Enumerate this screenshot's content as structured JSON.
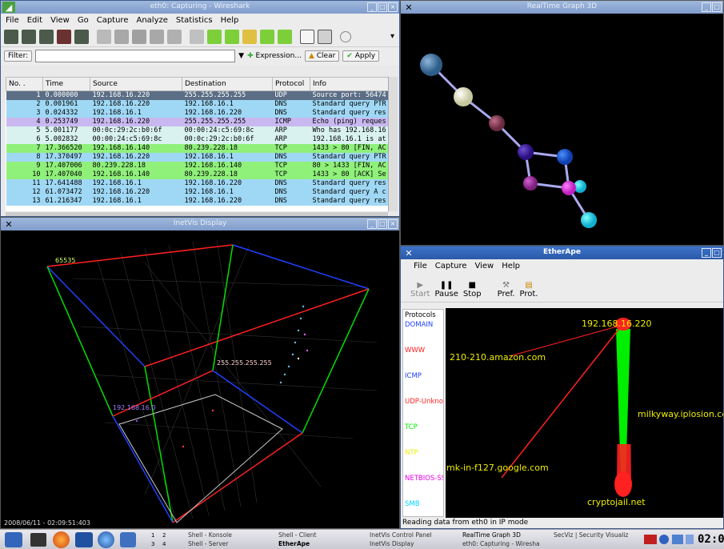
{
  "wireshark": {
    "title": "eth0: Capturing - Wireshark",
    "menu": [
      "File",
      "Edit",
      "View",
      "Go",
      "Capture",
      "Analyze",
      "Statistics",
      "Help"
    ],
    "filter_label": "Filter:",
    "filter_value": "",
    "expression_label": "Expression...",
    "clear_label": "Clear",
    "apply_label": "Apply",
    "columns": [
      "No. .",
      "Time",
      "Source",
      "Destination",
      "Protocol",
      "Info"
    ],
    "rows": [
      {
        "no": "1",
        "time": "0.000000",
        "src": "192.168.16.220",
        "dst": "255.255.255.255",
        "proto": "UDP",
        "info": "Source port: 56474",
        "bg": "#5b6e86",
        "fg": "#ffffff"
      },
      {
        "no": "2",
        "time": "0.001961",
        "src": "192.168.16.220",
        "dst": "192.168.16.1",
        "proto": "DNS",
        "info": "Standard query PTR",
        "bg": "#9fd8f5",
        "fg": "#000000"
      },
      {
        "no": "3",
        "time": "0.024332",
        "src": "192.168.16.1",
        "dst": "192.168.16.220",
        "proto": "DNS",
        "info": "Standard query res",
        "bg": "#9fd8f5",
        "fg": "#000000"
      },
      {
        "no": "4",
        "time": "0.253749",
        "src": "192.168.16.220",
        "dst": "255.255.255.255",
        "proto": "ICMP",
        "info": "Echo (ping) reques",
        "bg": "#c9b8f0",
        "fg": "#000000"
      },
      {
        "no": "5",
        "time": "5.001177",
        "src": "00:0c:29:2c:b0:6f",
        "dst": "00:00:24:c5:69:8c",
        "proto": "ARP",
        "info": "Who has 192.168.16",
        "bg": "#d9f2f0",
        "fg": "#000000"
      },
      {
        "no": "6",
        "time": "5.002832",
        "src": "00:00:24:c5:69:8c",
        "dst": "00:0c:29:2c:b0:6f",
        "proto": "ARP",
        "info": "192.168.16.1 is at",
        "bg": "#d9f2f0",
        "fg": "#000000"
      },
      {
        "no": "7",
        "time": "17.366520",
        "src": "192.168.16.140",
        "dst": "80.239.228.18",
        "proto": "TCP",
        "info": "1433 > 80 [FIN, AC",
        "bg": "#8ff07a",
        "fg": "#000000"
      },
      {
        "no": "8",
        "time": "17.370497",
        "src": "192.168.16.220",
        "dst": "192.168.16.1",
        "proto": "DNS",
        "info": "Standard query PTR",
        "bg": "#9fd8f5",
        "fg": "#000000"
      },
      {
        "no": "9",
        "time": "17.407006",
        "src": "80.239.228.18",
        "dst": "192.168.16.140",
        "proto": "TCP",
        "info": "80 > 1433 [FIN, AC",
        "bg": "#8ff07a",
        "fg": "#000000"
      },
      {
        "no": "10",
        "time": "17.407040",
        "src": "192.168.16.140",
        "dst": "80.239.228.18",
        "proto": "TCP",
        "info": "1433 > 80 [ACK] Se",
        "bg": "#8ff07a",
        "fg": "#000000"
      },
      {
        "no": "11",
        "time": "17.641488",
        "src": "192.168.16.1",
        "dst": "192.168.16.220",
        "proto": "DNS",
        "info": "Standard query res",
        "bg": "#9fd8f5",
        "fg": "#000000"
      },
      {
        "no": "12",
        "time": "61.073472",
        "src": "192.168.16.220",
        "dst": "192.168.16.1",
        "proto": "DNS",
        "info": "Standard query A c",
        "bg": "#9fd8f5",
        "fg": "#000000"
      },
      {
        "no": "13",
        "time": "61.216347",
        "src": "192.168.16.1",
        "dst": "192.168.16.220",
        "proto": "DNS",
        "info": "Standard query res",
        "bg": "#9fd8f5",
        "fg": "#000000"
      }
    ]
  },
  "realtime": {
    "title": "RealTime Graph 3D"
  },
  "inetvis": {
    "title": "InetVis Display",
    "label_port": "65535",
    "label_bcast": "255.255.255.255",
    "label_local": "192.168.16.0",
    "timestamp": "2008/06/11 - 02:09:51:403"
  },
  "etherape": {
    "title": "EtherApe",
    "menu": [
      "File",
      "Capture",
      "View",
      "Help"
    ],
    "tools": [
      "Start",
      "Pause",
      "Stop",
      "Pref.",
      "Prot."
    ],
    "protocols_title": "Protocols",
    "protocols": [
      {
        "name": "DOMAIN",
        "color": "#2040ff"
      },
      {
        "name": "WWW",
        "color": "#ff2020"
      },
      {
        "name": "ICMP",
        "color": "#2040ff"
      },
      {
        "name": "UDP-Unknown",
        "color": "#ff2020"
      },
      {
        "name": "TCP",
        "color": "#00ee00"
      },
      {
        "name": "NTP",
        "color": "#eeee00"
      },
      {
        "name": "NETBIOS-SSN",
        "color": "#ee00ee"
      },
      {
        "name": "SMB",
        "color": "#00d0ff"
      }
    ],
    "nodes": {
      "main": "192.168.16.220",
      "amazon": "210-210.amazon.com",
      "milkyway": "milkyway.iplosion.com",
      "google": "mk-in-f127.google.com",
      "crypto": "cryptojail.net"
    },
    "status": "Reading data from eth0 in IP mode"
  },
  "taskbar": {
    "desktops": [
      "1",
      "2",
      "3",
      "4"
    ],
    "tasks": [
      "Shell - Konsole",
      "Shell - Client",
      "InetVis Control Panel",
      "RealTime Graph 3D",
      "SecViz | Security Visualiz",
      "Shell - Server",
      "EtherApe",
      "InetVis Display",
      "eth0: Capturing - Wiresha"
    ],
    "clock": "02:0"
  }
}
